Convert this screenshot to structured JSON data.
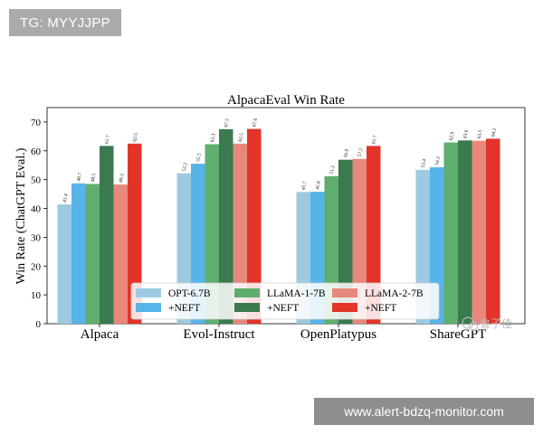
{
  "overlays": {
    "top_badge": "TG: MYYJJPP",
    "bottom_badge": "www.alert-bdzq-monitor.com",
    "watermark": "鲁子佳"
  },
  "chart_data": {
    "type": "bar",
    "title": "AlpacaEval Win Rate",
    "xlabel": "",
    "ylabel": "Win Rate (ChatGPT Eval.)",
    "ylim": [
      0,
      75
    ],
    "yticks": [
      0,
      10,
      20,
      30,
      40,
      50,
      60,
      70
    ],
    "categories": [
      "Alpaca",
      "Evol-Instruct",
      "OpenPlatypus",
      "ShareGPT"
    ],
    "legend_position": "lower-center",
    "series": [
      {
        "name": "OPT-6.7B",
        "color": "#9ecae1",
        "values": [
          41.4,
          52.2,
          45.7,
          53.4
        ]
      },
      {
        "name": "+NEFT",
        "color": "#56b4e9",
        "values": [
          48.7,
          55.5,
          45.8,
          54.3
        ]
      },
      {
        "name": "LLaMA-1-7B",
        "color": "#5fae6e",
        "values": [
          48.5,
          62.3,
          51.2,
          62.9
        ]
      },
      {
        "name": "+NEFT",
        "color": "#3a7a4e",
        "values": [
          61.7,
          67.5,
          56.9,
          63.6
        ]
      },
      {
        "name": "LLaMA-2-7B",
        "color": "#e8887d",
        "values": [
          48.3,
          62.5,
          57.2,
          63.5
        ]
      },
      {
        "name": "+NEFT",
        "color": "#e3342a",
        "values": [
          62.5,
          67.6,
          61.7,
          64.2
        ]
      }
    ]
  }
}
